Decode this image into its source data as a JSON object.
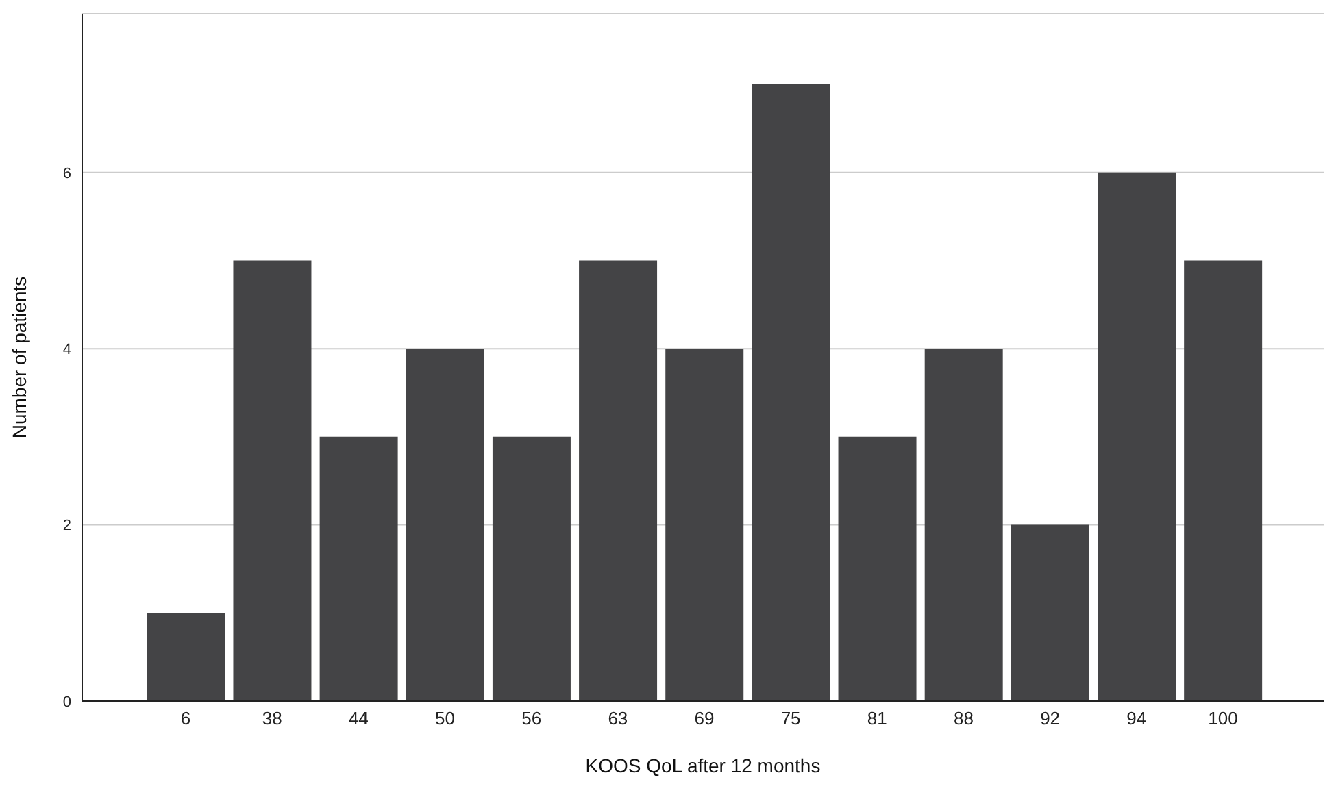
{
  "chart_data": {
    "type": "bar",
    "xlabel": "KOOS QoL after 12 months",
    "ylabel": "Number of patients",
    "categories": [
      "6",
      "38",
      "44",
      "50",
      "56",
      "63",
      "69",
      "75",
      "81",
      "88",
      "92",
      "94",
      "100"
    ],
    "values": [
      1,
      5,
      3,
      4,
      3,
      5,
      4,
      7,
      3,
      4,
      2,
      6,
      5
    ],
    "color": "#444446",
    "ylim": [
      0,
      7.8
    ],
    "yticks": [
      0,
      2,
      4,
      6
    ],
    "grid": "y"
  }
}
